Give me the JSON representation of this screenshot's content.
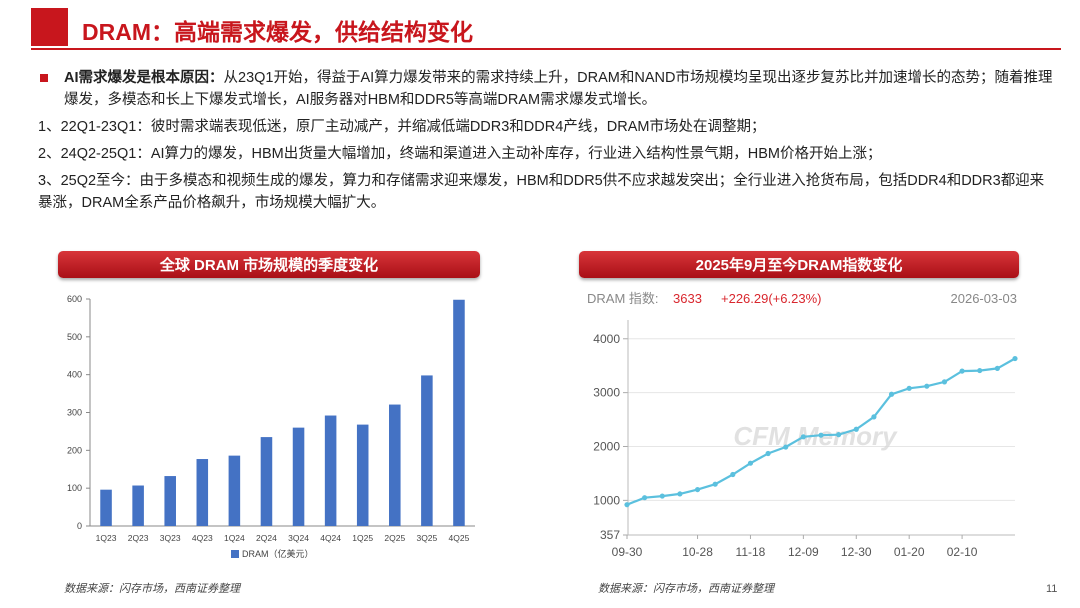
{
  "header": {
    "title": "DRAM：高端需求爆发，供给结构变化"
  },
  "intro": {
    "lead": "AI需求爆发是根本原因：",
    "text": "从23Q1开始，得益于AI算力爆发带来的需求持续上升，DRAM和NAND市场规模均呈现出逐步复苏比并加速增长的态势；随着推理爆发，多模态和长上下爆发式增长，AI服务器对HBM和DDR5等高端DRAM需求爆发式增长。"
  },
  "points": [
    "1、22Q1-23Q1：彼时需求端表现低迷，原厂主动减产，并缩减低端DDR3和DDR4产线，DRAM市场处在调整期；",
    "2、24Q2-25Q1：AI算力的爆发，HBM出货量大幅增加，终端和渠道进入主动补库存，行业进入结构性景气期，HBM价格开始上涨；",
    "3、25Q2至今：由于多模态和视频生成的爆发，算力和存储需求迎来爆发，HBM和DDR5供不应求越发突出；全行业进入抢货布局，包括DDR4和DDR3都迎来暴涨，DRAM全系产品价格飙升，市场规模大幅扩大。"
  ],
  "left_panel": {
    "banner": "全球 DRAM 市场规模的季度变化",
    "source": "数据来源：闪存市场，西南证券整理"
  },
  "right_panel": {
    "banner": "2025年9月至今DRAM指数变化",
    "index_label": "DRAM 指数:",
    "index_value": "3633",
    "index_change": "+226.29(+6.23%)",
    "date": "2026-03-03",
    "watermark": "CFM Memory",
    "source": "数据来源：闪存市场，西南证券整理"
  },
  "page_number": "11",
  "colors": {
    "accent": "#c8161d",
    "bar": "#4472c4",
    "line": "#5bc0de",
    "index_red": "#d9272e"
  },
  "chart_data": [
    {
      "type": "bar",
      "title": "",
      "categories": [
        "1Q23",
        "2Q23",
        "3Q23",
        "4Q23",
        "1Q24",
        "2Q24",
        "3Q24",
        "4Q24",
        "1Q25",
        "2Q25",
        "3Q25",
        "4Q25"
      ],
      "series": [
        {
          "name": "DRAM（亿美元）",
          "values": [
            96,
            107,
            132,
            177,
            186,
            235,
            260,
            292,
            268,
            321,
            398,
            598
          ]
        }
      ],
      "ylim": [
        0,
        600
      ],
      "yticks": [
        0,
        100,
        200,
        300,
        400,
        500,
        600
      ],
      "grid": false,
      "legend": "bottom"
    },
    {
      "type": "line",
      "title": "",
      "x": [
        "09-30",
        "10-07",
        "10-14",
        "10-21",
        "10-28",
        "11-04",
        "11-11",
        "11-18",
        "11-25",
        "12-02",
        "12-09",
        "12-16",
        "12-23",
        "12-30",
        "01-06",
        "01-13",
        "01-20",
        "01-27",
        "02-03",
        "02-10",
        "02-17",
        "02-24",
        "03-03"
      ],
      "series": [
        {
          "values": [
            920,
            1050,
            1080,
            1120,
            1200,
            1300,
            1480,
            1690,
            1870,
            1990,
            2180,
            2210,
            2220,
            2320,
            2550,
            2970,
            3080,
            3120,
            3200,
            3400,
            3410,
            3450,
            3633
          ]
        }
      ],
      "xticks": [
        "09-30",
        "10-28",
        "11-18",
        "12-09",
        "12-30",
        "01-20",
        "02-10"
      ],
      "yticks": [
        357,
        1000,
        2000,
        3000,
        4000
      ],
      "ylim": [
        357,
        4200
      ],
      "grid": true,
      "legend": "none"
    }
  ]
}
